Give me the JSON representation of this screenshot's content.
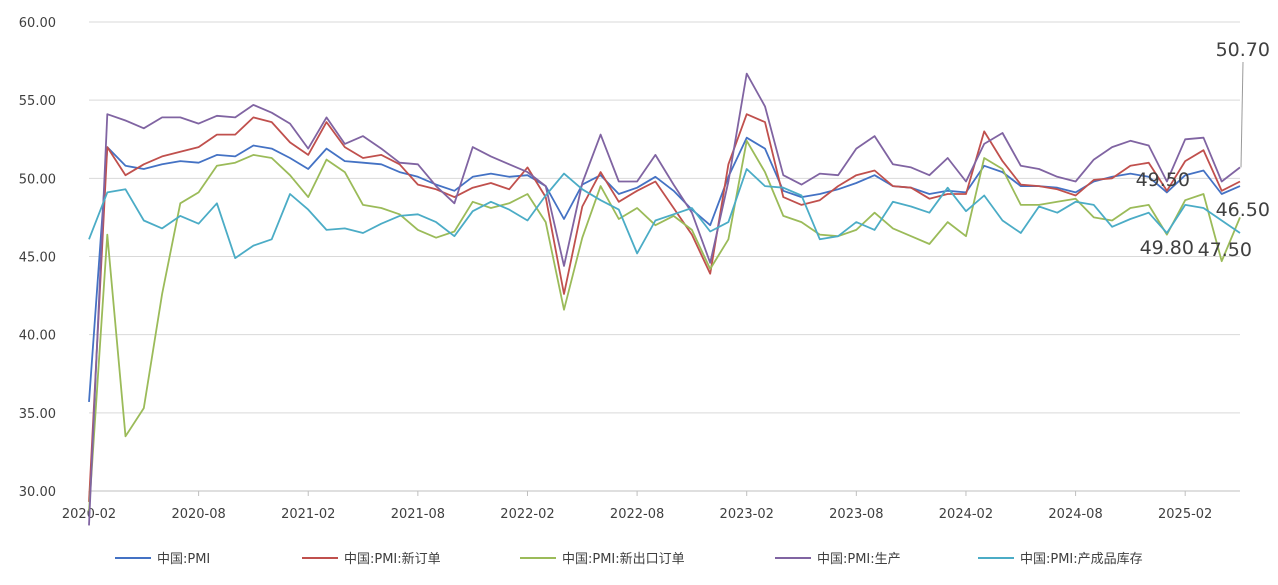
{
  "chart_data": {
    "type": "line",
    "ylim": [
      30,
      60
    ],
    "yticks": [
      "30.00",
      "35.00",
      "40.00",
      "45.00",
      "50.00",
      "55.00",
      "60.00"
    ],
    "grid": "horizontal",
    "legend_position": "bottom",
    "x": [
      "2020-02",
      "2020-03",
      "2020-04",
      "2020-05",
      "2020-06",
      "2020-07",
      "2020-08",
      "2020-09",
      "2020-10",
      "2020-11",
      "2020-12",
      "2021-01",
      "2021-02",
      "2021-03",
      "2021-04",
      "2021-05",
      "2021-06",
      "2021-07",
      "2021-08",
      "2021-09",
      "2021-10",
      "2021-11",
      "2021-12",
      "2022-01",
      "2022-02",
      "2022-03",
      "2022-04",
      "2022-05",
      "2022-06",
      "2022-07",
      "2022-08",
      "2022-09",
      "2022-10",
      "2022-11",
      "2022-12",
      "2023-01",
      "2023-02",
      "2023-03",
      "2023-04",
      "2023-05",
      "2023-06",
      "2023-07",
      "2023-08",
      "2023-09",
      "2023-10",
      "2023-11",
      "2023-12",
      "2024-01",
      "2024-02",
      "2024-03",
      "2024-04",
      "2024-05",
      "2024-06",
      "2024-07",
      "2024-08",
      "2024-09",
      "2024-10",
      "2024-11",
      "2024-12",
      "2025-01",
      "2025-02",
      "2025-03",
      "2025-04",
      "2025-05"
    ],
    "xtick_labels": [
      "2020-02",
      "2020-08",
      "2021-02",
      "2021-08",
      "2022-02",
      "2022-08",
      "2023-02",
      "2023-08",
      "2024-02",
      "2024-08",
      "2025-02"
    ],
    "series": [
      {
        "name": "中国:PMI",
        "color": "#4472c4",
        "values": [
          35.7,
          52.0,
          50.8,
          50.6,
          50.9,
          51.1,
          51.0,
          51.5,
          51.4,
          52.1,
          51.9,
          51.3,
          50.6,
          51.9,
          51.1,
          51.0,
          50.9,
          50.4,
          50.1,
          49.6,
          49.2,
          50.1,
          50.3,
          50.1,
          50.2,
          49.5,
          47.4,
          49.6,
          50.2,
          49.0,
          49.4,
          50.1,
          49.2,
          48.0,
          47.0,
          50.1,
          52.6,
          51.9,
          49.2,
          48.8,
          49.0,
          49.3,
          49.7,
          50.2,
          49.5,
          49.4,
          49.0,
          49.2,
          49.1,
          50.8,
          50.4,
          49.5,
          49.5,
          49.4,
          49.1,
          49.8,
          50.1,
          50.3,
          50.1,
          49.1,
          50.2,
          50.5,
          49.0,
          49.5
        ]
      },
      {
        "name": "中国:PMI:新订单",
        "color": "#c0504d",
        "values": [
          29.3,
          52.0,
          50.2,
          50.9,
          51.4,
          51.7,
          52.0,
          52.8,
          52.8,
          53.9,
          53.6,
          52.3,
          51.5,
          53.6,
          52.0,
          51.3,
          51.5,
          50.9,
          49.6,
          49.3,
          48.8,
          49.4,
          49.7,
          49.3,
          50.7,
          48.8,
          42.6,
          48.2,
          50.4,
          48.5,
          49.2,
          49.8,
          48.1,
          46.4,
          43.9,
          50.9,
          54.1,
          53.6,
          48.8,
          48.3,
          48.6,
          49.5,
          50.2,
          50.5,
          49.5,
          49.4,
          48.7,
          49.0,
          49.0,
          53.0,
          51.1,
          49.6,
          49.5,
          49.3,
          48.9,
          49.9,
          50.0,
          50.8,
          51.0,
          49.2,
          51.1,
          51.8,
          49.2,
          49.8
        ]
      },
      {
        "name": "中国:PMI:新出口订单",
        "color": "#9bbb59",
        "values": [
          28.7,
          46.4,
          33.5,
          35.3,
          42.6,
          48.4,
          49.1,
          50.8,
          51.0,
          51.5,
          51.3,
          50.2,
          48.8,
          51.2,
          50.4,
          48.3,
          48.1,
          47.7,
          46.7,
          46.2,
          46.6,
          48.5,
          48.1,
          48.4,
          49.0,
          47.2,
          41.6,
          46.2,
          49.5,
          47.4,
          48.1,
          47.0,
          47.6,
          46.7,
          44.2,
          46.1,
          52.4,
          50.4,
          47.6,
          47.2,
          46.4,
          46.3,
          46.7,
          47.8,
          46.8,
          46.3,
          45.8,
          47.2,
          46.3,
          51.3,
          50.6,
          48.3,
          48.3,
          48.5,
          48.7,
          47.5,
          47.3,
          48.1,
          48.3,
          46.4,
          48.6,
          49.0,
          44.7,
          47.5
        ]
      },
      {
        "name": "中国:PMI:生产",
        "color": "#8064a2",
        "values": [
          27.8,
          54.1,
          53.7,
          53.2,
          53.9,
          53.9,
          53.5,
          54.0,
          53.9,
          54.7,
          54.2,
          53.5,
          51.9,
          53.9,
          52.2,
          52.7,
          51.9,
          51.0,
          50.9,
          49.5,
          48.4,
          52.0,
          51.4,
          50.9,
          50.4,
          49.5,
          44.4,
          49.7,
          52.8,
          49.8,
          49.8,
          51.5,
          49.6,
          47.8,
          44.6,
          49.8,
          56.7,
          54.6,
          50.2,
          49.6,
          50.3,
          50.2,
          51.9,
          52.7,
          50.9,
          50.7,
          50.2,
          51.3,
          49.8,
          52.2,
          52.9,
          50.8,
          50.6,
          50.1,
          49.8,
          51.2,
          52.0,
          52.4,
          52.1,
          49.8,
          52.5,
          52.6,
          49.8,
          50.7
        ]
      },
      {
        "name": "中国:PMI:产成品库存",
        "color": "#4bacc6",
        "values": [
          46.1,
          49.1,
          49.3,
          47.3,
          46.8,
          47.6,
          47.1,
          48.4,
          44.9,
          45.7,
          46.1,
          49.0,
          48.0,
          46.7,
          46.8,
          46.5,
          47.1,
          47.6,
          47.7,
          47.2,
          46.3,
          47.9,
          48.5,
          48.0,
          47.3,
          48.9,
          50.3,
          49.3,
          48.6,
          48.0,
          45.2,
          47.3,
          47.7,
          48.1,
          46.6,
          47.2,
          50.6,
          49.5,
          49.4,
          48.9,
          46.1,
          46.3,
          47.2,
          46.7,
          48.5,
          48.2,
          47.8,
          49.4,
          47.9,
          48.9,
          47.3,
          46.5,
          48.2,
          47.8,
          48.5,
          48.3,
          46.9,
          47.4,
          47.8,
          46.5,
          48.3,
          48.1,
          47.3,
          46.5
        ]
      }
    ],
    "annotations": [
      {
        "text": "50.70",
        "series_index": 3
      },
      {
        "text": "49.50",
        "series_index": 0
      },
      {
        "text": "46.50",
        "series_index": 4
      },
      {
        "text": "49.80",
        "series_index": 1
      },
      {
        "text": "47.50",
        "series_index": 2
      }
    ]
  }
}
